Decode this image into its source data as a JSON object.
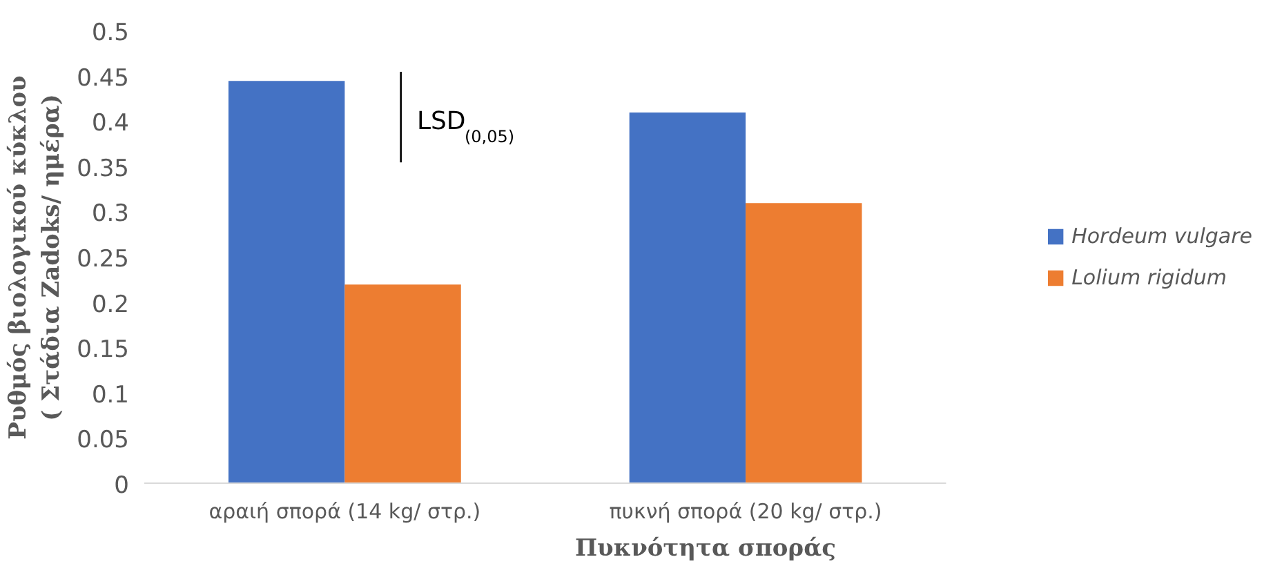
{
  "chart_data": {
    "type": "bar",
    "xlabel": "Πυκνότητα σποράς",
    "ylabel": "Ρυθμός βιολογικού κύκλου\n( Στάδια Zadoks/ ημέρα)",
    "categories": [
      "αραιή σπορά (14 kg/ στρ.)",
      "πυκνή σπορά (20 kg/ στρ.)"
    ],
    "series": [
      {
        "name": "Hordeum vulgare",
        "color": "#4472c4",
        "values": [
          0.445,
          0.41
        ]
      },
      {
        "name": "Lolium rigidum",
        "color": "#ed7d31",
        "values": [
          0.22,
          0.31
        ]
      }
    ],
    "ylim": [
      0,
      0.5
    ],
    "yticks": [
      0,
      0.05,
      0.1,
      0.15,
      0.2,
      0.25,
      0.3,
      0.35,
      0.4,
      0.45,
      0.5
    ],
    "grid": false,
    "legend": "right",
    "annotations": [
      "LSD$_{(0,05)}$"
    ]
  }
}
